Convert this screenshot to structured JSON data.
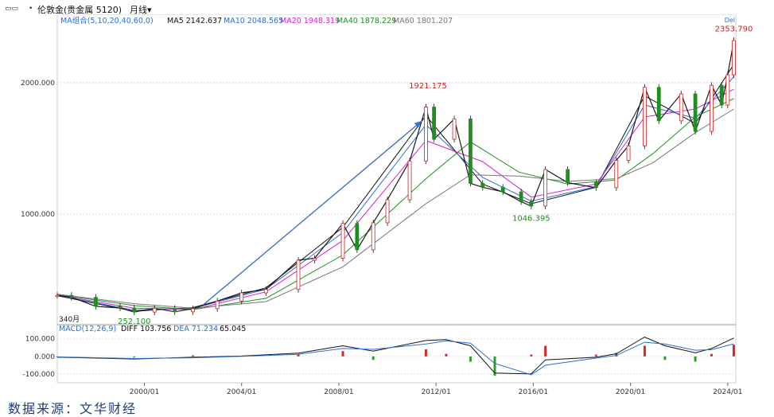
{
  "header": {
    "title": "伦敦金(贵金属 5120)",
    "period": "月线",
    "period_arrow": "▾"
  },
  "legend": {
    "ma_label": "MA组合(5,10,20,40,60,0)",
    "ma_items": [
      {
        "text": "MA5 2142.637",
        "color": "#111111"
      },
      {
        "text": "MA10 2048.565",
        "color": "#2a6fd6"
      },
      {
        "text": "MA20 1948.319",
        "color": "#d81fd8"
      },
      {
        "text": "MA40 1878.229",
        "color": "#1f8f1f"
      },
      {
        "text": "MA60 1801.207",
        "color": "#777777"
      }
    ],
    "macd_label": "MACD(12,26,9)",
    "macd_items": [
      {
        "text": "DIFF 103.756",
        "color": "#111111"
      },
      {
        "text": "DEA 71.234",
        "color": "#2a6fd6"
      },
      {
        "text": "65.045",
        "color": "#111111"
      }
    ]
  },
  "corner_label": "Del",
  "annotations": {
    "high_2011": "1921.175",
    "low_1999": "252.100",
    "low_2015": "1046.395",
    "high_2024": "2353.790",
    "start_label": "340月"
  },
  "source": "数据来源：文华财经",
  "chart_data": {
    "type": "line",
    "title": "",
    "period": "monthly",
    "price_axis": {
      "ticks": [
        "2000.000",
        "1000.000"
      ],
      "tick_values": [
        2000,
        1000
      ],
      "range": [
        160,
        2520
      ]
    },
    "macd_axis": {
      "ticks": [
        "100.000",
        "0.000",
        "-100.000"
      ],
      "tick_values": [
        100,
        0,
        -100
      ],
      "range": [
        -150,
        180
      ]
    },
    "x_axis": {
      "tick_labels": [
        "2000/01",
        "2004/01",
        "2008/01",
        "2012/01",
        "2016/01",
        "2020/01",
        "2024/01"
      ],
      "range": [
        "1996/06",
        "2024/05"
      ]
    },
    "price_series": {
      "name": "伦敦金",
      "x": [
        "1996/06",
        "1997/01",
        "1998/01",
        "1999/01",
        "1999/08",
        "2000/06",
        "2001/04",
        "2002/01",
        "2003/01",
        "2004/01",
        "2005/01",
        "2006/05",
        "2007/01",
        "2008/03",
        "2008/10",
        "2009/06",
        "2010/01",
        "2010/12",
        "2011/08",
        "2011/12",
        "2012/10",
        "2013/06",
        "2013/12",
        "2014/10",
        "2015/07",
        "2015/12",
        "2016/07",
        "2017/06",
        "2018/08",
        "2019/06",
        "2019/12",
        "2020/08",
        "2021/03",
        "2022/02",
        "2022/09",
        "2023/05",
        "2023/10",
        "2024/01",
        "2024/04"
      ],
      "values": [
        383,
        368,
        300,
        287,
        256,
        285,
        258,
        282,
        340,
        402,
        428,
        650,
        665,
        930,
        730,
        935,
        1110,
        1405,
        1815,
        1570,
        1725,
        1235,
        1205,
        1170,
        1095,
        1062,
        1340,
        1240,
        1202,
        1410,
        1520,
        1965,
        1710,
        1915,
        1630,
        1980,
        1830,
        2060,
        2320
      ]
    },
    "price_high": {
      "x": "2011/09",
      "value": 1921.175
    },
    "price_low_1999": {
      "x": "1999/08",
      "value": 252.1
    },
    "price_low_2015": {
      "x": "2015/12",
      "value": 1046.395
    },
    "price_high_2024": {
      "x": "2024/04",
      "value": 2353.79
    },
    "moving_averages": [
      {
        "name": "MA5",
        "last": 2142.637,
        "color": "#111111",
        "x": [
          "1996/06",
          "1999/08",
          "2002/01",
          "2005/01",
          "2008/03",
          "2011/08",
          "2013/12",
          "2015/12",
          "2018/08",
          "2020/08",
          "2022/09",
          "2024/04"
        ],
        "values": [
          380,
          262,
          290,
          440,
          900,
          1750,
          1230,
          1080,
          1205,
          1900,
          1690,
          2140
        ]
      },
      {
        "name": "MA10",
        "last": 2048.565,
        "color": "#2a6fd6",
        "x": [
          "1996/06",
          "1999/08",
          "2002/01",
          "2005/01",
          "2008/03",
          "2011/08",
          "2013/12",
          "2015/12",
          "2018/08",
          "2020/08",
          "2022/09",
          "2024/04"
        ],
        "values": [
          382,
          270,
          285,
          430,
          860,
          1680,
          1280,
          1100,
          1210,
          1830,
          1730,
          2045
        ]
      },
      {
        "name": "MA20",
        "last": 1948.319,
        "color": "#d81fd8",
        "x": [
          "1996/06",
          "1999/08",
          "2002/01",
          "2005/01",
          "2008/03",
          "2011/08",
          "2013/12",
          "2015/12",
          "2018/08",
          "2020/08",
          "2022/09",
          "2024/04"
        ],
        "values": [
          385,
          285,
          275,
          410,
          800,
          1560,
          1400,
          1130,
          1230,
          1740,
          1800,
          1950
        ]
      },
      {
        "name": "MA40",
        "last": 1878.229,
        "color": "#1f8f1f",
        "x": [
          "1996/06",
          "1999/08",
          "2002/01",
          "2005/01",
          "2008/03",
          "2011/08",
          "2013/06",
          "2015/06",
          "2017/06",
          "2019/06",
          "2020/12",
          "2022/09",
          "2024/04"
        ],
        "values": [
          390,
          305,
          275,
          360,
          690,
          1270,
          1550,
          1320,
          1230,
          1260,
          1460,
          1740,
          1880
        ]
      },
      {
        "name": "MA60",
        "last": 1801.207,
        "color": "#777777",
        "x": [
          "1996/06",
          "1999/08",
          "2002/01",
          "2005/01",
          "2008/03",
          "2011/08",
          "2013/06",
          "2015/06",
          "2017/06",
          "2019/06",
          "2020/12",
          "2022/09",
          "2024/04"
        ],
        "values": [
          392,
          320,
          285,
          335,
          600,
          1080,
          1300,
          1290,
          1250,
          1270,
          1390,
          1620,
          1800
        ]
      }
    ],
    "macd": {
      "name": "MACD(12,26,9)",
      "diff_last": 103.756,
      "dea_last": 71.234,
      "macd_last": 65.045,
      "x": [
        "1996/06",
        "1999/08",
        "2002/01",
        "2004/01",
        "2006/05",
        "2008/03",
        "2009/06",
        "2011/08",
        "2012/06",
        "2013/06",
        "2014/06",
        "2015/12",
        "2016/07",
        "2018/08",
        "2019/06",
        "2020/08",
        "2021/06",
        "2022/09",
        "2023/05",
        "2024/04"
      ],
      "diff": [
        -5,
        -15,
        -5,
        2,
        18,
        60,
        30,
        90,
        95,
        60,
        -95,
        -100,
        -20,
        -5,
        15,
        110,
        60,
        20,
        45,
        104
      ],
      "dea": [
        -3,
        -12,
        -8,
        0,
        12,
        45,
        40,
        70,
        88,
        75,
        -40,
        -105,
        -50,
        -10,
        5,
        80,
        70,
        35,
        38,
        71
      ]
    },
    "annotation_arrow": {
      "from": {
        "x": "2002/06",
        "value": 310
      },
      "to": {
        "x": "2011/06",
        "value": 1710
      }
    }
  }
}
